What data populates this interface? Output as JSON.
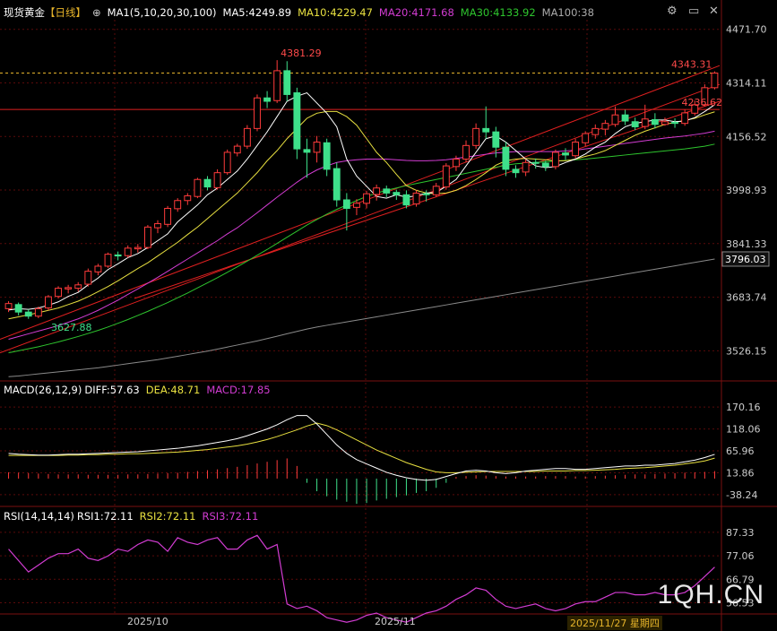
{
  "header": {
    "symbol": "现货黄金",
    "period": "【日线】",
    "ma_title": "MA1(5,10,20,30,100)",
    "ma5": "MA5:4249.89",
    "ma10": "MA10:4229.47",
    "ma20": "MA20:4171.68",
    "ma30": "MA30:4133.92",
    "ma100": "MA100:38"
  },
  "toolbar": {
    "settings_icon": "settings-icon",
    "minimize_icon": "minimize-icon",
    "close_icon": "close-icon"
  },
  "macd_header": {
    "title": "MACD(26,12,9)",
    "diff": "DIFF:57.63",
    "dea": "DEA:48.71",
    "macd": "MACD:17.85"
  },
  "rsi_header": {
    "title": "RSI(14,14,14)",
    "rsi1": "RSI1:72.11",
    "rsi2": "RSI2:72.11",
    "rsi3": "RSI3:72.11"
  },
  "watermark": "1QH.CN",
  "xaxis": {
    "label1": "2025/10",
    "label2": "2025/11",
    "cursor_label": "2025/11/27 星期四"
  },
  "chart_data": [
    {
      "type": "candlestick",
      "ylim": [
        3440,
        4500
      ],
      "y_ticks": [
        "4471.70",
        "4314.11",
        "4156.52",
        "3998.93",
        "3841.33",
        "3683.74",
        "3526.15"
      ],
      "current_price_label": "3796.03",
      "annotations": {
        "high": "4381.29",
        "low": "3627.88",
        "last_high": "4343.31",
        "level": "4236.62"
      },
      "horizontal_lines": [
        4343,
        4236
      ],
      "candles": [
        [
          3650,
          3665,
          3640,
          3672
        ],
        [
          3662,
          3640,
          3630,
          3668
        ],
        [
          3640,
          3628,
          3620,
          3648
        ],
        [
          3628,
          3650,
          3622,
          3656
        ],
        [
          3652,
          3685,
          3645,
          3690
        ],
        [
          3686,
          3710,
          3680,
          3716
        ],
        [
          3708,
          3712,
          3695,
          3720
        ],
        [
          3710,
          3720,
          3700,
          3728
        ],
        [
          3722,
          3760,
          3715,
          3768
        ],
        [
          3758,
          3775,
          3748,
          3782
        ],
        [
          3775,
          3810,
          3770,
          3815
        ],
        [
          3808,
          3805,
          3792,
          3818
        ],
        [
          3806,
          3828,
          3800,
          3836
        ],
        [
          3826,
          3830,
          3815,
          3840
        ],
        [
          3830,
          3890,
          3825,
          3896
        ],
        [
          3888,
          3900,
          3872,
          3910
        ],
        [
          3898,
          3945,
          3890,
          3952
        ],
        [
          3944,
          3968,
          3935,
          3975
        ],
        [
          3968,
          3982,
          3955,
          3990
        ],
        [
          3980,
          4030,
          3975,
          4035
        ],
        [
          4030,
          4008,
          3998,
          4040
        ],
        [
          4006,
          4050,
          4000,
          4060
        ],
        [
          4050,
          4110,
          4044,
          4118
        ],
        [
          4108,
          4128,
          4098,
          4135
        ],
        [
          4128,
          4180,
          4120,
          4190
        ],
        [
          4180,
          4270,
          4172,
          4280
        ],
        [
          4270,
          4260,
          4240,
          4290
        ],
        [
          4262,
          4350,
          4255,
          4381
        ],
        [
          4350,
          4280,
          4260,
          4378
        ],
        [
          4285,
          4120,
          4090,
          4300
        ],
        [
          4118,
          4110,
          4035,
          4150
        ],
        [
          4110,
          4140,
          4080,
          4158
        ],
        [
          4138,
          4060,
          4040,
          4150
        ],
        [
          4062,
          3970,
          3950,
          4080
        ],
        [
          3970,
          3945,
          3880,
          3990
        ],
        [
          3948,
          3960,
          3925,
          3972
        ],
        [
          3960,
          3988,
          3945,
          3996
        ],
        [
          3986,
          4005,
          3968,
          4015
        ],
        [
          4002,
          3990,
          3978,
          4012
        ],
        [
          3992,
          3985,
          3970,
          4000
        ],
        [
          3985,
          3955,
          3945,
          3998
        ],
        [
          3958,
          3990,
          3950,
          3998
        ],
        [
          3988,
          3985,
          3965,
          3998
        ],
        [
          3985,
          4010,
          3978,
          4020
        ],
        [
          4008,
          4070,
          4000,
          4078
        ],
        [
          4068,
          4090,
          4055,
          4100
        ],
        [
          4090,
          4130,
          4080,
          4145
        ],
        [
          4130,
          4180,
          4120,
          4195
        ],
        [
          4180,
          4170,
          4150,
          4245
        ],
        [
          4170,
          4125,
          4095,
          4185
        ],
        [
          4125,
          4060,
          4040,
          4140
        ],
        [
          4060,
          4050,
          4035,
          4072
        ],
        [
          4052,
          4080,
          4040,
          4090
        ],
        [
          4080,
          4078,
          4062,
          4092
        ],
        [
          4078,
          4068,
          4055,
          4085
        ],
        [
          4068,
          4110,
          4060,
          4118
        ],
        [
          4108,
          4102,
          4088,
          4122
        ],
        [
          4100,
          4140,
          4092,
          4150
        ],
        [
          4138,
          4165,
          4128,
          4172
        ],
        [
          4162,
          4180,
          4150,
          4192
        ],
        [
          4178,
          4195,
          4160,
          4205
        ],
        [
          4192,
          4220,
          4185,
          4245
        ],
        [
          4220,
          4202,
          4190,
          4235
        ],
        [
          4200,
          4185,
          4175,
          4212
        ],
        [
          4186,
          4208,
          4178,
          4250
        ],
        [
          4206,
          4192,
          4180,
          4225
        ],
        [
          4192,
          4200,
          4188,
          4212
        ],
        [
          4198,
          4195,
          4182,
          4210
        ],
        [
          4195,
          4226,
          4188,
          4235
        ],
        [
          4225,
          4250,
          4218,
          4262
        ],
        [
          4250,
          4300,
          4245,
          4310
        ],
        [
          4300,
          4343,
          4295,
          4348
        ]
      ],
      "ma5": [
        3646,
        3650,
        3648,
        3652,
        3660,
        3670,
        3686,
        3698,
        3720,
        3740,
        3765,
        3782,
        3800,
        3812,
        3830,
        3850,
        3870,
        3905,
        3930,
        3955,
        3985,
        4005,
        4030,
        4055,
        4090,
        4130,
        4170,
        4215,
        4260,
        4275,
        4285,
        4255,
        4225,
        4185,
        4090,
        4040,
        4010,
        3980,
        3975,
        3985,
        3978,
        3982,
        3990,
        3992,
        4010,
        4030,
        4070,
        4110,
        4150,
        4158,
        4140,
        4115,
        4090,
        4070,
        4065,
        4068,
        4080,
        4090,
        4105,
        4125,
        4140,
        4165,
        4185,
        4195,
        4200,
        4205,
        4205,
        4200,
        4202,
        4212,
        4230,
        4250
      ],
      "ma10": [
        3620,
        3626,
        3632,
        3638,
        3645,
        3652,
        3662,
        3672,
        3685,
        3700,
        3715,
        3732,
        3750,
        3768,
        3785,
        3805,
        3825,
        3845,
        3868,
        3890,
        3915,
        3940,
        3965,
        3990,
        4020,
        4050,
        4085,
        4115,
        4150,
        4180,
        4210,
        4225,
        4230,
        4230,
        4215,
        4190,
        4150,
        4110,
        4080,
        4045,
        4012,
        3998,
        3990,
        3988,
        3990,
        3998,
        4012,
        4030,
        4050,
        4072,
        4085,
        4090,
        4092,
        4090,
        4088,
        4085,
        4085,
        4090,
        4098,
        4105,
        4115,
        4130,
        4145,
        4160,
        4172,
        4182,
        4192,
        4198,
        4204,
        4210,
        4220,
        4229
      ],
      "ma20": [
        3560,
        3568,
        3576,
        3584,
        3592,
        3600,
        3610,
        3620,
        3632,
        3645,
        3660,
        3675,
        3692,
        3708,
        3725,
        3742,
        3760,
        3778,
        3796,
        3814,
        3832,
        3850,
        3870,
        3888,
        3910,
        3932,
        3955,
        3978,
        4000,
        4022,
        4042,
        4058,
        4070,
        4080,
        4085,
        4088,
        4090,
        4090,
        4090,
        4088,
        4086,
        4085,
        4085,
        4086,
        4088,
        4092,
        4096,
        4100,
        4104,
        4108,
        4110,
        4112,
        4112,
        4112,
        4112,
        4112,
        4114,
        4116,
        4120,
        4124,
        4128,
        4132,
        4136,
        4140,
        4144,
        4148,
        4152,
        4155,
        4158,
        4162,
        4166,
        4172
      ],
      "ma30": [
        3520,
        3526,
        3532,
        3538,
        3545,
        3552,
        3560,
        3568,
        3577,
        3586,
        3596,
        3607,
        3618,
        3630,
        3642,
        3655,
        3668,
        3682,
        3696,
        3711,
        3726,
        3741,
        3757,
        3773,
        3790,
        3807,
        3824,
        3842,
        3860,
        3878,
        3896,
        3912,
        3928,
        3942,
        3955,
        3968,
        3980,
        3990,
        3998,
        4005,
        4012,
        4018,
        4024,
        4030,
        4036,
        4042,
        4048,
        4054,
        4060,
        4066,
        4072,
        4076,
        4078,
        4080,
        4082,
        4084,
        4086,
        4088,
        4090,
        4093,
        4096,
        4099,
        4102,
        4105,
        4108,
        4111,
        4114,
        4117,
        4120,
        4124,
        4128,
        4134
      ],
      "ma100": [
        3450,
        3452,
        3455,
        3458,
        3461,
        3464,
        3467,
        3470,
        3473,
        3476,
        3480,
        3484,
        3488,
        3492,
        3496,
        3500,
        3505,
        3510,
        3515,
        3520,
        3525,
        3531,
        3537,
        3543,
        3549,
        3555,
        3562,
        3569,
        3576,
        3583,
        3590,
        3596,
        3601,
        3606,
        3611,
        3616,
        3621,
        3626,
        3631,
        3636,
        3641,
        3646,
        3651,
        3656,
        3661,
        3666,
        3671,
        3676,
        3681,
        3686,
        3691,
        3696,
        3701,
        3706,
        3711,
        3716,
        3721,
        3726,
        3731,
        3736,
        3741,
        3746,
        3751,
        3756,
        3761,
        3766,
        3771,
        3776,
        3781,
        3786,
        3791,
        3796
      ]
    },
    {
      "type": "line",
      "name": "MACD",
      "ylim": [
        -64,
        196
      ],
      "y_ticks": [
        "170.16",
        "118.06",
        "65.96",
        "13.86",
        "-38.24"
      ],
      "diff": [
        60,
        58,
        57,
        56,
        56,
        57,
        58,
        58,
        59,
        60,
        61,
        62,
        63,
        64,
        66,
        68,
        70,
        72,
        75,
        78,
        82,
        86,
        90,
        95,
        102,
        110,
        118,
        128,
        140,
        150,
        150,
        130,
        105,
        80,
        60,
        45,
        35,
        25,
        15,
        8,
        2,
        -2,
        -4,
        -2,
        5,
        12,
        18,
        20,
        18,
        14,
        12,
        14,
        18,
        20,
        22,
        24,
        24,
        22,
        22,
        24,
        26,
        28,
        30,
        30,
        32,
        32,
        34,
        36,
        40,
        44,
        50,
        57.63
      ],
      "dea": [
        55,
        55,
        55,
        55,
        55,
        55,
        56,
        56,
        57,
        57,
        58,
        58,
        59,
        59,
        60,
        61,
        62,
        63,
        65,
        67,
        69,
        72,
        75,
        78,
        82,
        87,
        93,
        100,
        108,
        116,
        125,
        132,
        126,
        116,
        104,
        92,
        80,
        68,
        58,
        48,
        38,
        30,
        22,
        16,
        14,
        14,
        15,
        16,
        17,
        17,
        17,
        17,
        17,
        17,
        18,
        18,
        18,
        19,
        19,
        20,
        21,
        22,
        24,
        25,
        26,
        28,
        30,
        32,
        35,
        38,
        42,
        48.71
      ],
      "macd": [
        15,
        14,
        13,
        12,
        11,
        10,
        10,
        10,
        9,
        9,
        9,
        9,
        10,
        10,
        11,
        12,
        13,
        14,
        16,
        18,
        20,
        22,
        25,
        28,
        32,
        36,
        40,
        44,
        48,
        30,
        -10,
        -30,
        -42,
        -50,
        -55,
        -60,
        -58,
        -52,
        -48,
        -44,
        -40,
        -34,
        -30,
        -22,
        -10,
        4,
        6,
        8,
        7,
        6,
        5,
        5,
        5,
        5,
        6,
        6,
        6,
        5,
        5,
        6,
        7,
        8,
        9,
        10,
        10,
        11,
        12,
        13,
        14,
        15,
        16,
        17.85
      ]
    },
    {
      "type": "line",
      "name": "RSI",
      "ylim": [
        52,
        92
      ],
      "y_ticks": [
        "87.33",
        "77.06",
        "66.79",
        "56.53"
      ],
      "rsi": [
        80,
        75,
        70,
        73,
        76,
        78,
        78,
        80,
        76,
        75,
        77,
        80,
        79,
        82,
        84,
        83,
        79,
        85,
        83,
        82,
        84,
        85,
        80,
        80,
        84,
        86,
        80,
        82,
        56,
        54,
        55,
        53,
        50,
        49,
        48,
        49,
        51,
        52,
        50,
        49,
        48,
        50,
        52,
        53,
        55,
        58,
        60,
        63,
        62,
        58,
        55,
        54,
        55,
        56,
        54,
        53,
        54,
        56,
        57,
        57,
        59,
        61,
        61,
        60,
        60,
        61,
        60,
        60,
        61,
        64,
        68,
        72.11
      ]
    }
  ]
}
